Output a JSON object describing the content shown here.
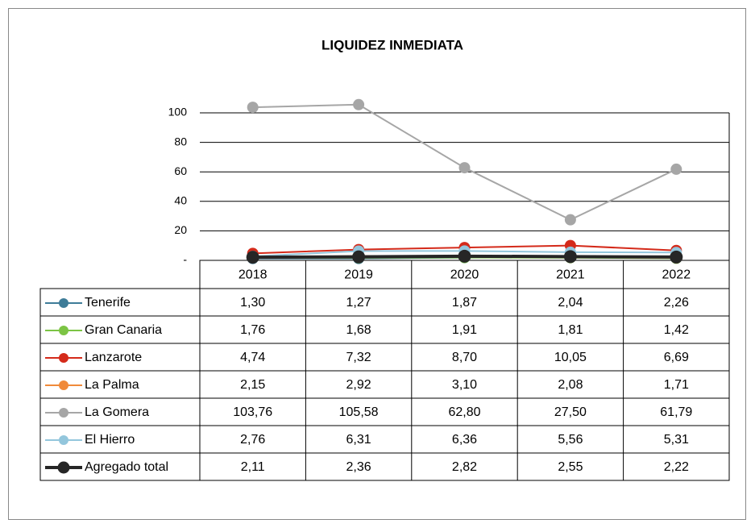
{
  "chart_data": {
    "type": "line",
    "title": "LIQUIDEZ INMEDIATA",
    "categories": [
      "2018",
      "2019",
      "2020",
      "2021",
      "2022"
    ],
    "ylim": [
      0,
      120
    ],
    "yticks": [
      {
        "value": 0,
        "label": "-"
      },
      20,
      40,
      60,
      80,
      100
    ],
    "grid": true,
    "series": [
      {
        "name": "Tenerife",
        "color": "#3e7c98",
        "values": [
          1.3,
          1.27,
          1.87,
          2.04,
          2.26
        ],
        "value_labels": [
          "1,30",
          "1,27",
          "1,87",
          "2,04",
          "2,26"
        ]
      },
      {
        "name": "Gran Canaria",
        "color": "#7cc444",
        "values": [
          1.76,
          1.68,
          1.91,
          1.81,
          1.42
        ],
        "value_labels": [
          "1,76",
          "1,68",
          "1,91",
          "1,81",
          "1,42"
        ]
      },
      {
        "name": "Lanzarote",
        "color": "#d42a1a",
        "values": [
          4.74,
          7.32,
          8.7,
          10.05,
          6.69
        ],
        "value_labels": [
          "4,74",
          "7,32",
          "8,70",
          "10,05",
          "6,69"
        ]
      },
      {
        "name": "La Palma",
        "color": "#f08a3a",
        "values": [
          2.15,
          2.92,
          3.1,
          2.08,
          1.71
        ],
        "value_labels": [
          "2,15",
          "2,92",
          "3,10",
          "2,08",
          "1,71"
        ]
      },
      {
        "name": "La Gomera",
        "color": "#a6a6a6",
        "values": [
          103.76,
          105.58,
          62.8,
          27.5,
          61.79
        ],
        "value_labels": [
          "103,76",
          "105,58",
          "62,80",
          "27,50",
          "61,79"
        ]
      },
      {
        "name": "El Hierro",
        "color": "#93c6dc",
        "values": [
          2.76,
          6.31,
          6.36,
          5.56,
          5.31
        ],
        "value_labels": [
          "2,76",
          "6,31",
          "6,36",
          "5,56",
          "5,31"
        ]
      },
      {
        "name": "Agregado total",
        "color": "#262626",
        "values": [
          2.11,
          2.36,
          2.82,
          2.55,
          2.22
        ],
        "value_labels": [
          "2,11",
          "2,36",
          "2,82",
          "2,55",
          "2,22"
        ]
      }
    ]
  }
}
